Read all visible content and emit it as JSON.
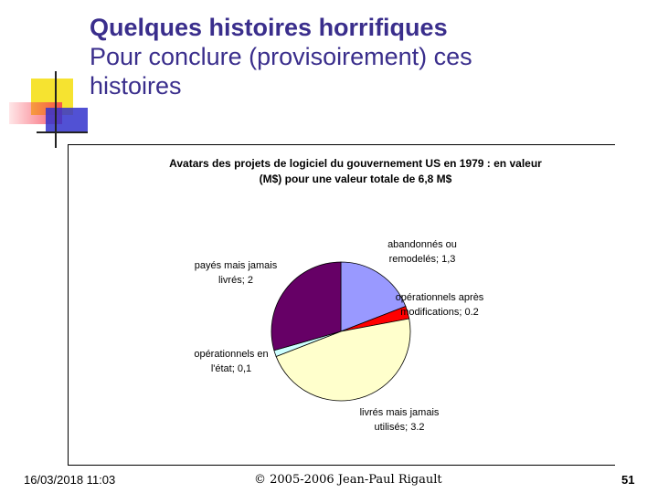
{
  "slide": {
    "title_line1": "Quelques histoires horrifiques",
    "title_line2a": "Pour conclure (provisoirement) ces",
    "title_line2b": "histoires"
  },
  "chart_data": {
    "type": "pie",
    "title_line1": "Avatars des projets de logiciel du gouvernement US en 1979 : en valeur",
    "title_line2": "(M$) pour une valeur totale de 6,8 M$",
    "slices": [
      {
        "label_line1": "abandonnés ou",
        "label_line2": "remodelés; 1,3",
        "value": 1.3,
        "color": "#9999ff"
      },
      {
        "label_line1": "opérationnels après",
        "label_line2": "modifications; 0.2",
        "value": 0.2,
        "color": "#ff0000"
      },
      {
        "label_line1": "livrés mais jamais",
        "label_line2": "utilisés; 3.2",
        "value": 3.2,
        "color": "#ffffcc"
      },
      {
        "label_line1": "opérationnels en",
        "label_line2": "l'état; 0,1",
        "value": 0.1,
        "color": "#ccffff"
      },
      {
        "label_line1": "payés mais jamais",
        "label_line2": "livrés; 2",
        "value": 2,
        "color": "#660066"
      }
    ]
  },
  "footer": {
    "date": "16/03/2018 11:03",
    "copyright": "© 2005-2006 Jean-Paul Rigault",
    "page": "51"
  },
  "colors": {
    "title": "#3a2e8c",
    "deco_yellow": "#f6e330",
    "deco_blue": "#3333cc",
    "deco_red": "#f03c50"
  }
}
